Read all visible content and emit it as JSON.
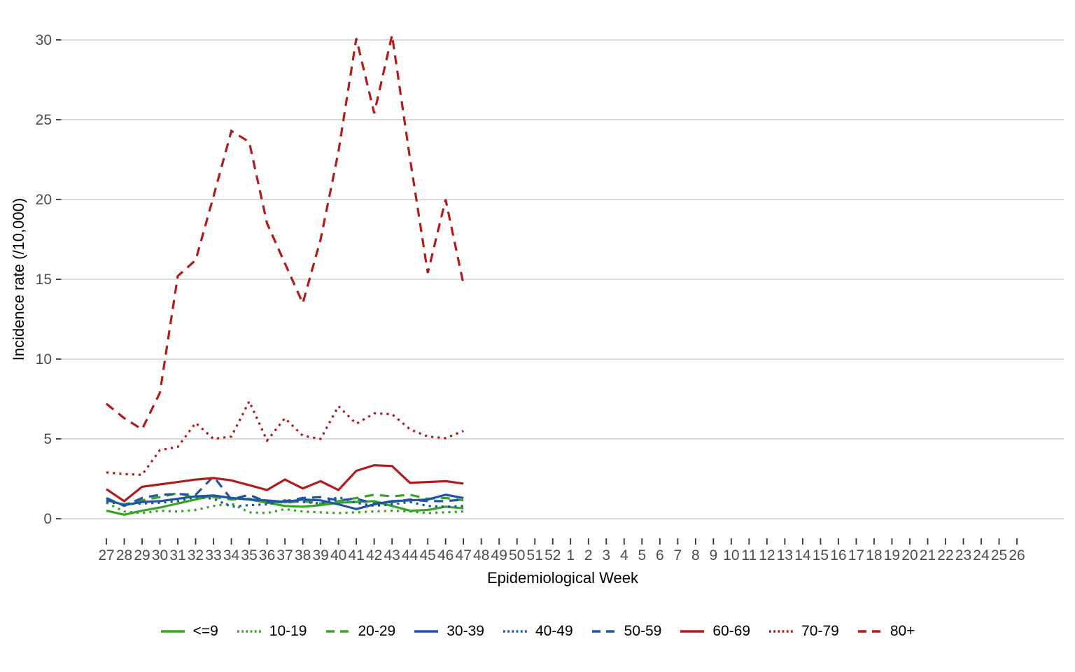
{
  "chart_data": {
    "type": "line",
    "title": "",
    "xlabel": "Epidemiological Week",
    "ylabel": "Incidence rate (/10,000)",
    "legend_position": "bottom",
    "grid": "horizontal major gridlines only, white background",
    "background_color": "#ffffff",
    "gridline_color": "#d6d6d6",
    "tick_color": "#333333",
    "tick_label_color": "#4d4d4d",
    "ylim": [
      0,
      30.5
    ],
    "yticks": [
      0,
      5,
      10,
      15,
      20,
      25,
      30
    ],
    "x_axis_ticks": [
      "27",
      "28",
      "29",
      "30",
      "31",
      "32",
      "33",
      "34",
      "35",
      "36",
      "37",
      "38",
      "39",
      "40",
      "41",
      "42",
      "43",
      "44",
      "45",
      "46",
      "47",
      "48",
      "49",
      "50",
      "51",
      "52",
      "1",
      "2",
      "3",
      "4",
      "5",
      "6",
      "7",
      "8",
      "9",
      "10",
      "11",
      "12",
      "13",
      "14",
      "15",
      "16",
      "17",
      "18",
      "19",
      "20",
      "21",
      "22",
      "23",
      "24",
      "25",
      "26"
    ],
    "x": [
      27,
      28,
      29,
      30,
      31,
      32,
      33,
      34,
      35,
      36,
      37,
      38,
      39,
      40,
      41,
      42,
      43,
      44,
      45,
      46,
      47
    ],
    "series": [
      {
        "name": "<=9",
        "color": "#3ba428",
        "linetype": "solid",
        "values": [
          0.5,
          0.25,
          0.5,
          0.7,
          0.95,
          1.2,
          1.45,
          1.3,
          1.2,
          1.0,
          0.8,
          0.75,
          0.85,
          1.0,
          1.05,
          1.1,
          0.8,
          0.5,
          0.55,
          0.75,
          0.65
        ]
      },
      {
        "name": "10-19",
        "color": "#3ba428",
        "linetype": "dotted",
        "values": [
          1.0,
          0.45,
          0.35,
          0.5,
          0.45,
          0.55,
          0.8,
          0.95,
          0.4,
          0.35,
          0.6,
          0.45,
          0.4,
          0.35,
          0.4,
          0.45,
          0.5,
          0.45,
          0.35,
          0.4,
          0.45
        ]
      },
      {
        "name": "20-29",
        "color": "#3ba428",
        "linetype": "dashed",
        "values": [
          1.15,
          0.9,
          1.15,
          1.35,
          1.6,
          1.3,
          1.35,
          1.2,
          1.25,
          1.1,
          1.0,
          1.1,
          0.95,
          1.1,
          1.3,
          1.5,
          1.4,
          1.5,
          1.25,
          1.3,
          1.15
        ]
      },
      {
        "name": "30-39",
        "color": "#1f55a5",
        "linetype": "solid",
        "values": [
          1.2,
          0.85,
          1.05,
          1.1,
          1.25,
          1.4,
          1.45,
          1.3,
          1.2,
          1.15,
          1.05,
          1.2,
          1.15,
          0.9,
          0.6,
          0.9,
          1.1,
          1.15,
          1.2,
          1.5,
          1.3
        ]
      },
      {
        "name": "40-49",
        "color": "#1f55a5",
        "linetype": "dotted",
        "values": [
          1.05,
          0.9,
          0.95,
          1.0,
          1.1,
          1.35,
          1.25,
          0.75,
          0.85,
          0.9,
          1.15,
          1.05,
          0.95,
          1.35,
          1.0,
          0.8,
          0.9,
          1.05,
          0.8,
          0.75,
          0.8
        ]
      },
      {
        "name": "50-59",
        "color": "#1f55a5",
        "linetype": "dashed",
        "values": [
          1.3,
          0.8,
          1.3,
          1.5,
          1.55,
          1.5,
          2.65,
          1.2,
          1.5,
          1.05,
          1.1,
          1.3,
          1.35,
          1.15,
          1.25,
          0.95,
          1.05,
          1.2,
          1.1,
          1.1,
          1.2
        ]
      },
      {
        "name": "60-69",
        "color": "#b01c1c",
        "linetype": "solid",
        "values": [
          1.85,
          1.1,
          2.0,
          2.15,
          2.3,
          2.45,
          2.55,
          2.4,
          2.1,
          1.8,
          2.45,
          1.9,
          2.35,
          1.8,
          3.0,
          3.35,
          3.3,
          2.25,
          2.3,
          2.35,
          2.2
        ]
      },
      {
        "name": "70-79",
        "color": "#b01c1c",
        "linetype": "dotted",
        "values": [
          2.9,
          2.8,
          2.75,
          4.3,
          4.5,
          6.0,
          5.0,
          5.15,
          7.35,
          4.9,
          6.3,
          5.2,
          5.0,
          7.05,
          5.95,
          6.6,
          6.55,
          5.6,
          5.15,
          5.05,
          5.5
        ]
      },
      {
        "name": "80+",
        "color": "#b01c1c",
        "linetype": "dashed",
        "values": [
          7.2,
          6.3,
          5.6,
          7.9,
          15.2,
          16.2,
          20.2,
          24.3,
          23.6,
          18.5,
          16.0,
          13.5,
          17.5,
          23.0,
          30.1,
          25.4,
          30.3,
          22.6,
          15.4,
          20.0,
          14.7
        ]
      }
    ]
  }
}
